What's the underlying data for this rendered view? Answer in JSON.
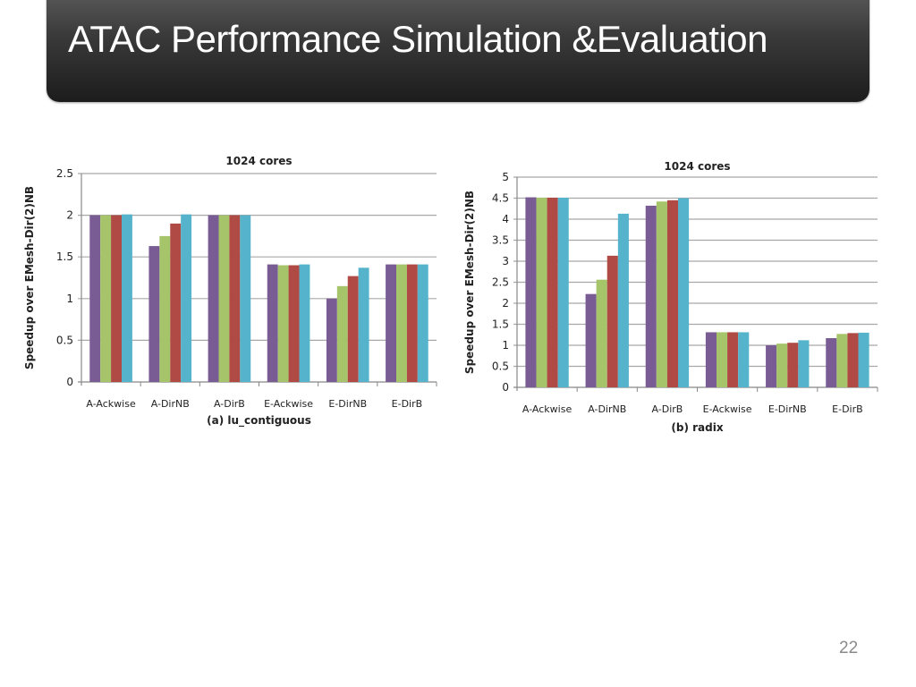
{
  "slide": {
    "title": "ATAC Performance Simulation &Evaluation",
    "page_number": "22"
  },
  "series_colors": [
    "#7a5c94",
    "#a6c46a",
    "#b04a45",
    "#55b4cc"
  ],
  "chart_data": [
    {
      "type": "bar",
      "title": "1024 cores",
      "xlabel": "(a) lu_contiguous",
      "ylabel": "Speedup over EMesh-Dir(2)NB",
      "ylim": [
        0,
        2.5
      ],
      "yticks": [
        "0",
        "0.5",
        "1",
        "1.5",
        "2",
        "2.5"
      ],
      "ytick_values": [
        0,
        0.5,
        1,
        1.5,
        2,
        2.5
      ],
      "grid": true,
      "legend": "none",
      "categories": [
        "A-Ackwise",
        "A-DirNB",
        "A-DirB",
        "E-Ackwise",
        "E-DirNB",
        "E-DirB"
      ],
      "series": [
        {
          "name": "series-1",
          "values": [
            2.0,
            1.63,
            2.0,
            1.41,
            1.0,
            1.41
          ]
        },
        {
          "name": "series-2",
          "values": [
            2.0,
            1.75,
            2.0,
            1.4,
            1.15,
            1.41
          ]
        },
        {
          "name": "series-3",
          "values": [
            2.0,
            1.9,
            2.0,
            1.4,
            1.27,
            1.41
          ]
        },
        {
          "name": "series-4",
          "values": [
            2.01,
            2.01,
            2.0,
            1.41,
            1.37,
            1.41
          ]
        }
      ]
    },
    {
      "type": "bar",
      "title": "1024 cores",
      "xlabel": "(b) radix",
      "ylabel": "Speedup over EMesh-Dir(2)NB",
      "ylim": [
        0,
        5
      ],
      "yticks": [
        "0",
        "0.5",
        "1",
        "1.5",
        "2",
        "2.5",
        "3",
        "3.5",
        "4",
        "4.5",
        "5"
      ],
      "ytick_values": [
        0,
        0.5,
        1,
        1.5,
        2,
        2.5,
        3,
        3.5,
        4,
        4.5,
        5
      ],
      "grid": true,
      "legend": "none",
      "categories": [
        "A-Ackwise",
        "A-DirNB",
        "A-DirB",
        "E-Ackwise",
        "E-DirNB",
        "E-DirB"
      ],
      "series": [
        {
          "name": "series-1",
          "values": [
            4.52,
            2.22,
            4.32,
            1.31,
            1.0,
            1.17
          ]
        },
        {
          "name": "series-2",
          "values": [
            4.51,
            2.56,
            4.42,
            1.31,
            1.04,
            1.27
          ]
        },
        {
          "name": "series-3",
          "values": [
            4.51,
            3.13,
            4.45,
            1.31,
            1.06,
            1.29
          ]
        },
        {
          "name": "series-4",
          "values": [
            4.51,
            4.13,
            4.5,
            1.31,
            1.12,
            1.3
          ]
        }
      ]
    }
  ]
}
